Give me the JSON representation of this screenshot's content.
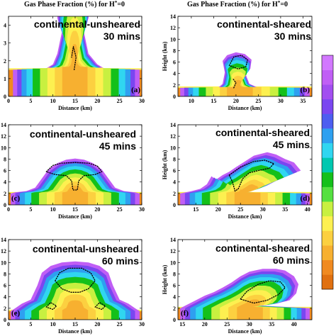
{
  "figure": {
    "titles": [
      {
        "prefix": "Gas Phase Fraction (%) for H",
        "sup": "*",
        "suffix": "=0"
      },
      {
        "prefix": "Gas Phase Fraction (%) for H",
        "sup": "*",
        "suffix": "=0"
      }
    ],
    "colorbar_colors": [
      "#e07010",
      "#f08a20",
      "#f7b030",
      "#fcd040",
      "#fdf050",
      "#c8f040",
      "#55e040",
      "#14c01a",
      "#00c8b0",
      "#30d6f0",
      "#2ea0f0",
      "#4d5ef0",
      "#7a46f0",
      "#a24ef0",
      "#c05ef5",
      "#d278ff"
    ]
  },
  "chart_data": [
    {
      "id": "a",
      "type": "heatmap",
      "panel_label": "(a)",
      "annotation": [
        "continental-unsheared",
        "30 mins"
      ],
      "xlabel": "Distance (km)",
      "ylabel": "",
      "xlim": [
        0,
        30
      ],
      "ylim": [
        0,
        4.5
      ],
      "x_ticks": [
        0,
        5,
        10,
        15,
        20,
        25,
        30
      ],
      "y_ticks": [
        0,
        1,
        2,
        3,
        4
      ],
      "variable": "Gas Phase Fraction (%)"
    },
    {
      "id": "b",
      "type": "heatmap",
      "panel_label": "(b)",
      "annotation": [
        "continental-sheared",
        "30 mins"
      ],
      "xlabel": "Distance (km)",
      "ylabel": "Height (km)",
      "xlim": [
        7,
        37
      ],
      "ylim": [
        0,
        14
      ],
      "x_ticks": [
        10,
        15,
        20,
        25,
        30,
        35
      ],
      "y_ticks": [
        0,
        2,
        4,
        6,
        8,
        10,
        12,
        14
      ],
      "variable": "Gas Phase Fraction (%)"
    },
    {
      "id": "c",
      "type": "heatmap",
      "panel_label": "(c)",
      "annotation": [
        "continental-unsheared",
        "45 mins"
      ],
      "xlabel": "Distance (km)",
      "ylabel": "",
      "xlim": [
        0,
        30
      ],
      "ylim": [
        0,
        14
      ],
      "x_ticks": [
        0,
        5,
        10,
        15,
        20,
        25,
        30
      ],
      "y_ticks": [
        0,
        2,
        4,
        6,
        8,
        10,
        12,
        14
      ],
      "variable": "Gas Phase Fraction (%)"
    },
    {
      "id": "d",
      "type": "heatmap",
      "panel_label": "(d)",
      "annotation": [
        "continental-sheared",
        "45 mins"
      ],
      "xlabel": "Distance (km)",
      "ylabel": "Height (km)",
      "xlim": [
        11,
        41
      ],
      "ylim": [
        0,
        14
      ],
      "x_ticks": [
        15,
        20,
        25,
        30,
        35,
        40
      ],
      "y_ticks": [
        0,
        2,
        4,
        6,
        8,
        10,
        12,
        14
      ],
      "variable": "Gas Phase Fraction (%)"
    },
    {
      "id": "e",
      "type": "heatmap",
      "panel_label": "(e)",
      "annotation": [
        "continental-unsheared",
        "60 mins"
      ],
      "xlabel": "Distance (km)",
      "ylabel": "",
      "xlim": [
        0,
        30
      ],
      "ylim": [
        0,
        14
      ],
      "x_ticks": [
        0,
        5,
        10,
        15,
        20,
        25,
        30
      ],
      "y_ticks": [
        0,
        2,
        4,
        6,
        8,
        10,
        12,
        14
      ],
      "variable": "Gas Phase Fraction (%)"
    },
    {
      "id": "f",
      "type": "heatmap",
      "panel_label": "(f)",
      "annotation": [
        "continental-sheared",
        "60 mins"
      ],
      "xlabel": "Distance (km)",
      "ylabel": "Height (km)",
      "xlim": [
        14,
        44
      ],
      "ylim": [
        0,
        14
      ],
      "x_ticks": [
        15,
        20,
        25,
        30,
        35,
        40
      ],
      "y_ticks": [
        0,
        2,
        4,
        6,
        8,
        10,
        12,
        14
      ],
      "variable": "Gas Phase Fraction (%)"
    }
  ]
}
